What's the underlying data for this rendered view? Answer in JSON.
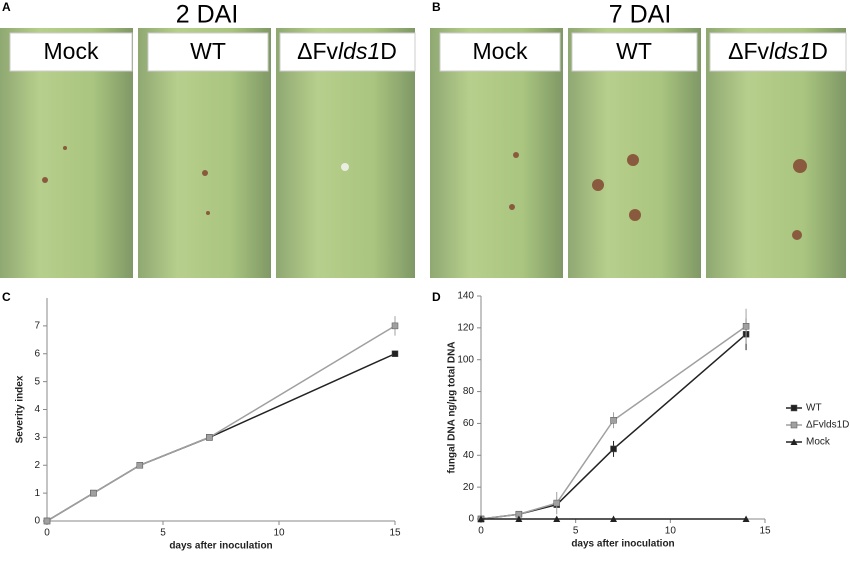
{
  "panels": {
    "A": {
      "letter": "A",
      "title": "2 DAI",
      "labels": [
        {
          "text": "Mock"
        },
        {
          "text": "WT"
        },
        {
          "prefix": "ΔFv",
          "italic": "lds1",
          "suffix": "D"
        }
      ]
    },
    "B": {
      "letter": "B",
      "title": "7 DAI",
      "labels": [
        {
          "text": "Mock"
        },
        {
          "text": "WT"
        },
        {
          "prefix": "ΔFv",
          "italic": "lds1",
          "suffix": "D"
        }
      ]
    },
    "C": {
      "letter": "C"
    },
    "D": {
      "letter": "D"
    }
  },
  "chart_data": [
    {
      "type": "line",
      "ylabel": "Severity index",
      "xlabel": "days after inoculation",
      "x": [
        0,
        2,
        4,
        7,
        15
      ],
      "xlim": [
        0,
        15
      ],
      "xticks": [
        0,
        5,
        10,
        15
      ],
      "ylim": [
        0,
        8
      ],
      "yticks": [
        0,
        1,
        2,
        3,
        4,
        5,
        6,
        7
      ],
      "series": [
        {
          "color": "#222222",
          "marker": "square",
          "values": [
            0,
            1,
            2,
            3,
            6
          ],
          "errors": [
            0,
            0,
            0,
            0,
            0
          ]
        },
        {
          "color": "#a0a0a0",
          "marker": "square",
          "values": [
            0,
            1,
            2,
            3,
            7
          ],
          "errors": [
            0,
            0,
            0.05,
            0.05,
            0.35
          ]
        }
      ]
    },
    {
      "type": "line",
      "ylabel": "fungal DNA ng/µg total DNA",
      "xlabel": "days after inoculation",
      "x": [
        0,
        2,
        4,
        7,
        14
      ],
      "xlim": [
        0,
        15
      ],
      "xticks": [
        0,
        5,
        10,
        15
      ],
      "ylim": [
        0,
        140
      ],
      "yticks": [
        0,
        20,
        40,
        60,
        80,
        100,
        120,
        140
      ],
      "legend": "right",
      "series": [
        {
          "name": "WT",
          "color": "#222222",
          "marker": "square",
          "values": [
            0,
            3,
            9,
            44,
            116
          ],
          "errors": [
            0,
            1,
            2,
            5,
            10
          ]
        },
        {
          "name": "ΔFvlds1D",
          "color": "#a0a0a0",
          "marker": "square",
          "values": [
            0,
            3,
            10,
            62,
            121
          ],
          "errors": [
            0,
            1,
            7,
            5,
            11
          ]
        },
        {
          "name": "Mock",
          "color": "#222222",
          "marker": "triangle",
          "values": [
            0,
            0,
            0,
            0,
            0
          ],
          "errors": [
            0,
            0,
            0,
            0,
            0
          ]
        }
      ]
    }
  ]
}
